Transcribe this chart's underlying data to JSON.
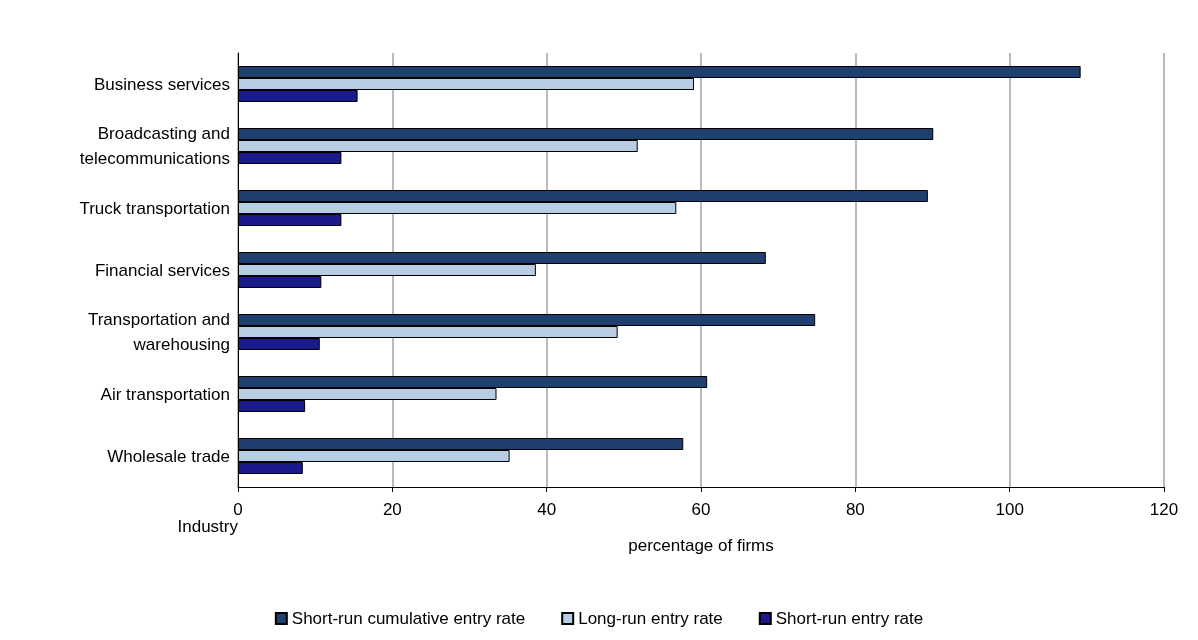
{
  "chart_data": {
    "type": "bar",
    "orientation": "horizontal",
    "ylabel": "Industry",
    "xlabel": "percentage of firms",
    "categories": [
      "Business services",
      "Broadcasting and\ntelecommunications",
      "Truck transportation",
      "Financial services",
      "Transportation and\nwarehousing",
      "Air transportation",
      "Wholesale trade"
    ],
    "series": [
      {
        "name": "Short-run cumulative entry rate",
        "color": "#1f3f6e",
        "values": [
          109.2,
          90.1,
          89.4,
          68.4,
          74.8,
          60.8,
          57.7
        ]
      },
      {
        "name": "Long-run entry rate",
        "color": "#b8cce4",
        "values": [
          59.1,
          51.8,
          56.8,
          38.6,
          49.2,
          33.5,
          35.2
        ]
      },
      {
        "name": "Short-run entry rate",
        "color": "#1a1a8c",
        "values": [
          15.5,
          13.4,
          13.4,
          10.8,
          10.6,
          8.7,
          8.4
        ]
      }
    ],
    "xlim": [
      0,
      120
    ],
    "xticks": [
      0,
      20,
      40,
      60,
      80,
      100,
      120
    ],
    "grid": "x",
    "legend": "bottom"
  }
}
